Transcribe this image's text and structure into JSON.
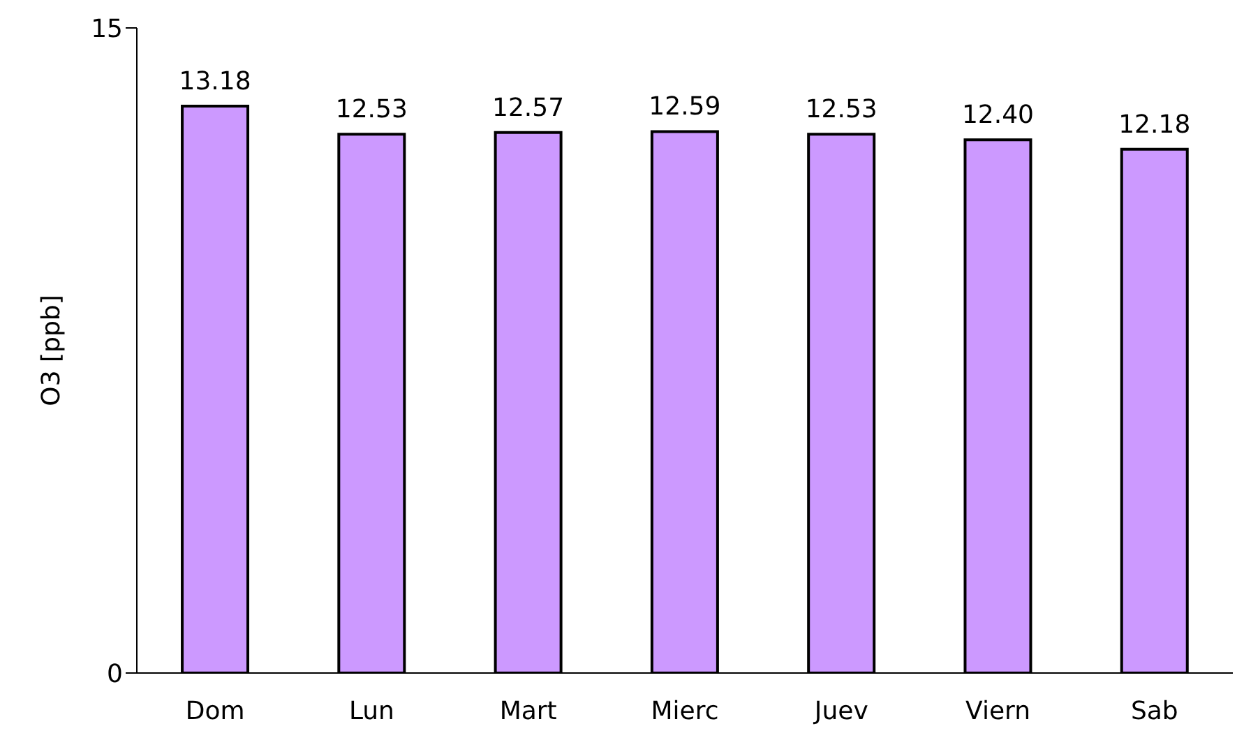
{
  "chart_data": {
    "type": "bar",
    "ylabel": "O3 [ppb]",
    "categories": [
      "Dom",
      "Lun",
      "Mart",
      "Mierc",
      "Juev",
      "Viern",
      "Sab"
    ],
    "values": [
      13.18,
      12.53,
      12.57,
      12.59,
      12.53,
      12.4,
      12.18
    ],
    "value_labels": [
      "13.18",
      "12.53",
      "12.57",
      "12.59",
      "12.53",
      "12.40",
      "12.18"
    ],
    "color": "#cc99ff",
    "ylim": [
      0,
      15
    ],
    "yticks": [
      0,
      15
    ],
    "grid": false,
    "legend": false
  }
}
